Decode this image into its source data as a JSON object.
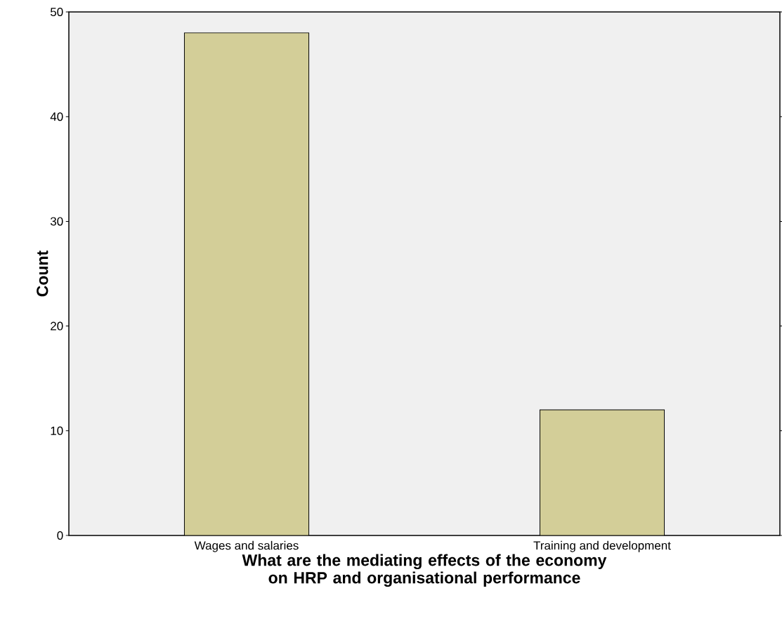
{
  "chart_data": {
    "type": "bar",
    "xlabel": "What are the mediating effects of the economy on HRP and organisational performance",
    "ylabel": "Count",
    "categories": [
      "Wages and salaries",
      "Training and development"
    ],
    "values": [
      48,
      12
    ],
    "color": "#d3ce98",
    "ylim": [
      0,
      50
    ],
    "yticks": [
      0,
      10,
      20,
      30,
      40,
      50
    ],
    "grid": false
  }
}
